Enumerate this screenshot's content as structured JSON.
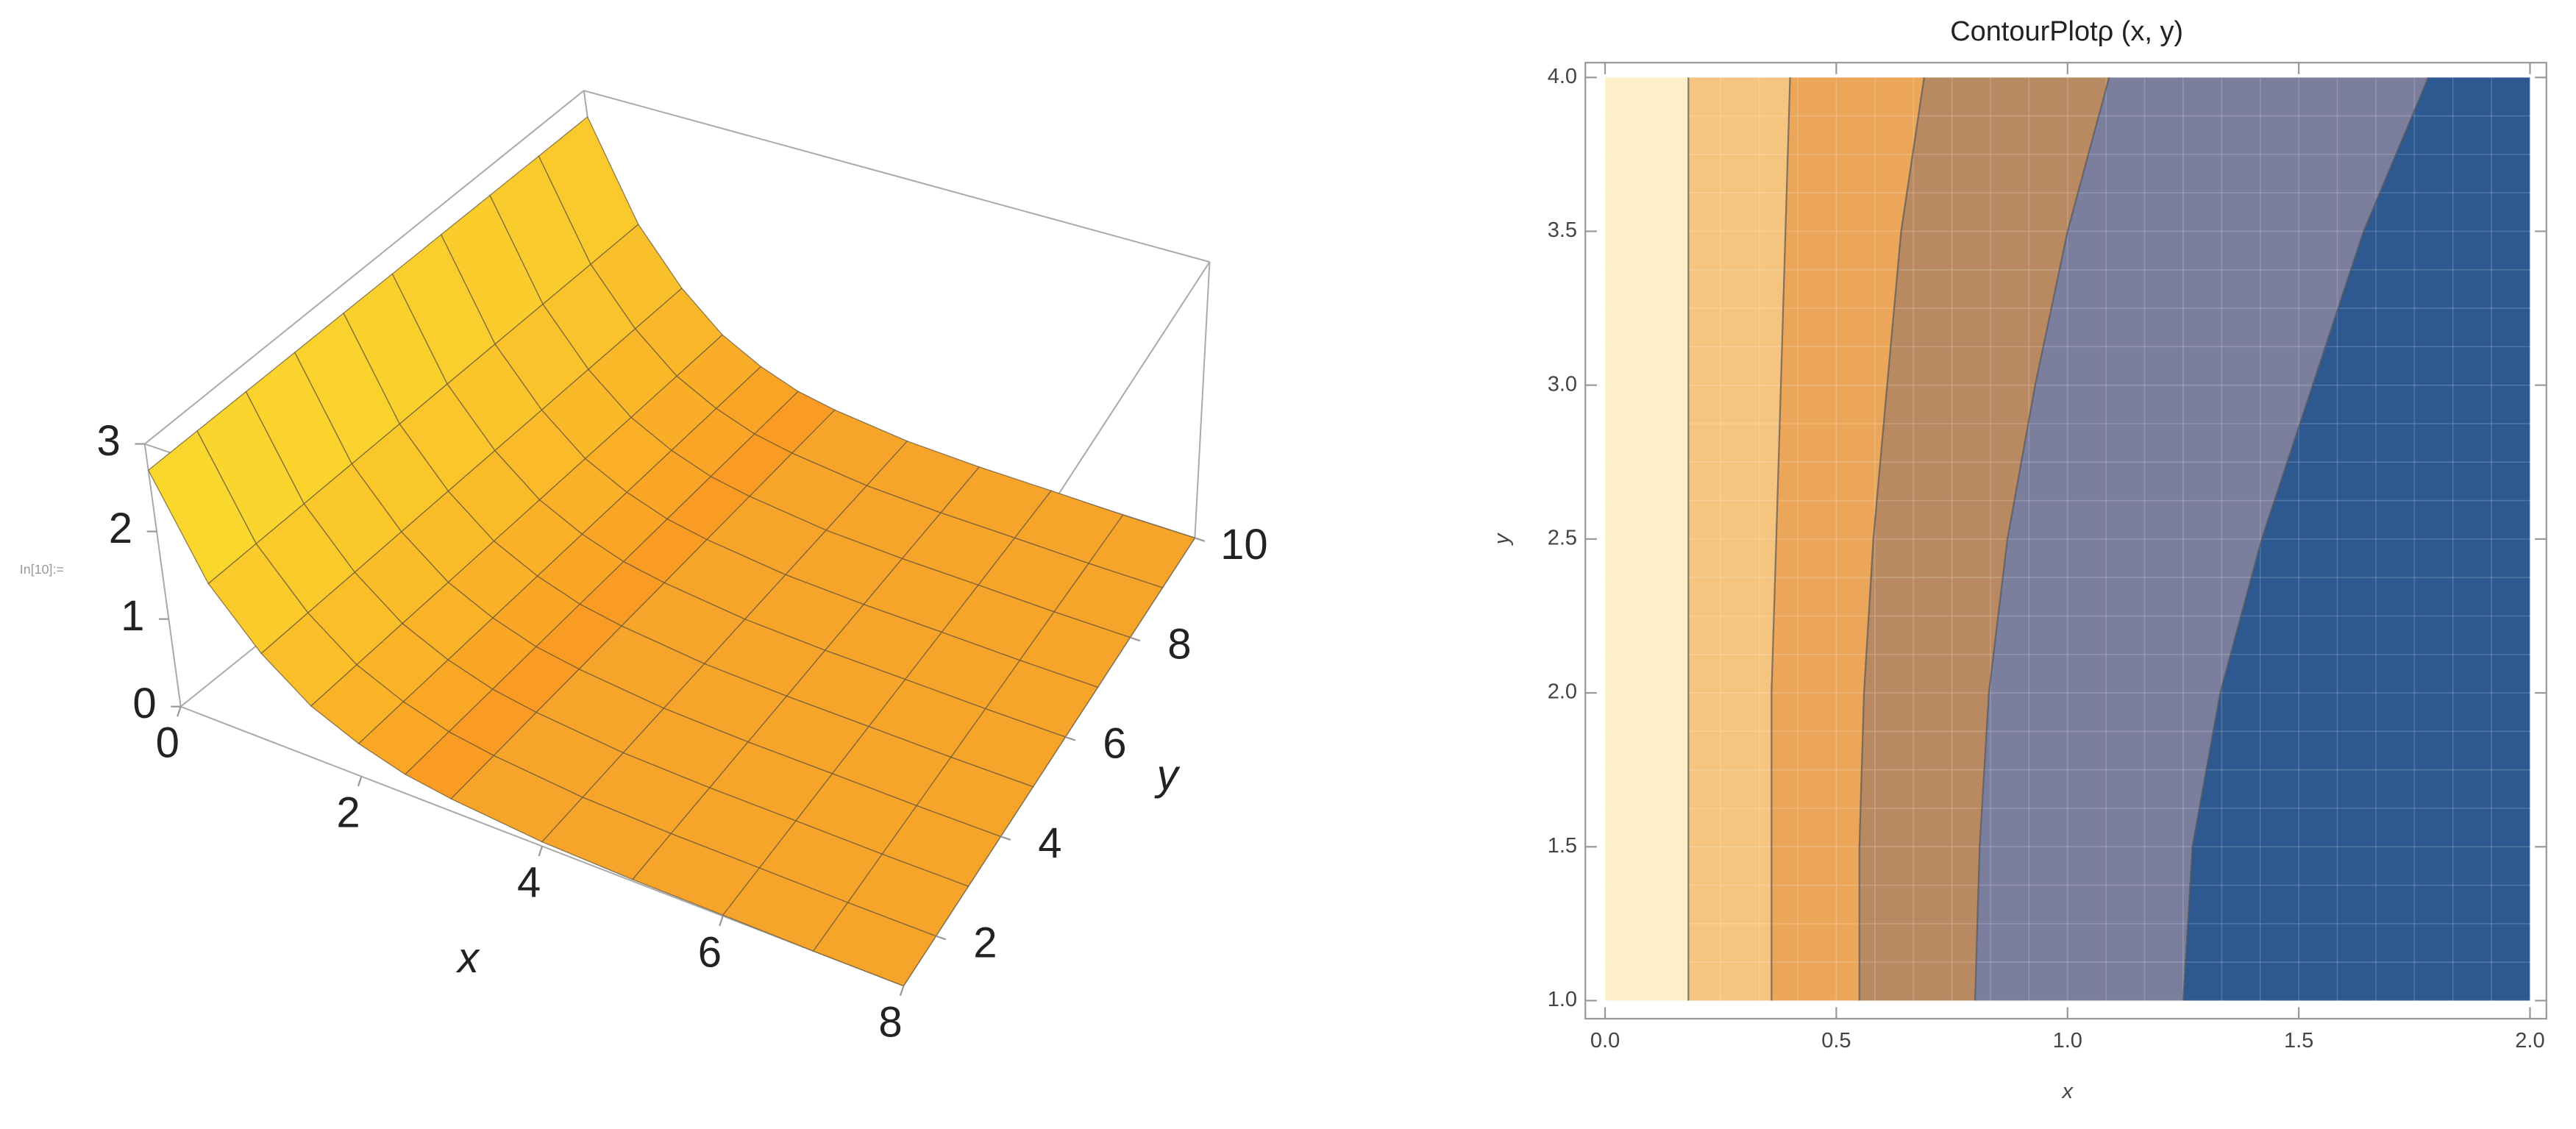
{
  "cell_label": "In[10]:=",
  "chart_data": [
    {
      "type": "surface3d",
      "x_label": "x",
      "y_label": "y",
      "x": [
        0,
        0.5,
        1,
        1.5,
        2,
        2.5,
        3,
        4,
        5,
        6,
        7,
        8
      ],
      "values": [
        2.7,
        1.6,
        1.0,
        0.6,
        0.37,
        0.22,
        0.14,
        0.05,
        0.02,
        0.01,
        0,
        0
      ],
      "color": "#f7a42b",
      "xlim": [
        0,
        8
      ],
      "ylim": [
        1,
        10
      ],
      "zlim": [
        0,
        3
      ],
      "xticks": [
        0,
        2,
        4,
        6,
        8
      ],
      "yticks": [
        2,
        4,
        6,
        8,
        10
      ],
      "zticks": [
        0,
        1,
        2,
        3
      ]
    },
    {
      "type": "contour",
      "title": "ContourPlotρ (x, y)",
      "x_label": "x",
      "y_label": "y",
      "xlim": [
        0,
        2
      ],
      "ylim": [
        1,
        4
      ],
      "xticks": [
        {
          "value": 0,
          "label": "0.0"
        },
        {
          "value": 0.5,
          "label": "0.5"
        },
        {
          "value": 1,
          "label": "1.0"
        },
        {
          "value": 1.5,
          "label": "1.5"
        },
        {
          "value": 2,
          "label": "2.0"
        }
      ],
      "yticks": [
        {
          "value": 1,
          "label": "1.0"
        },
        {
          "value": 1.5,
          "label": "1.5"
        },
        {
          "value": 2,
          "label": "2.0"
        },
        {
          "value": 2.5,
          "label": "2.5"
        },
        {
          "value": 3,
          "label": "3.0"
        },
        {
          "value": 3.5,
          "label": "3.5"
        },
        {
          "value": 4,
          "label": "4.0"
        }
      ],
      "boundary_y": [
        1.0,
        1.5,
        2.0,
        2.5,
        3.0,
        3.5,
        4.0
      ],
      "boundaries": [
        [
          0.18,
          0.18,
          0.18,
          0.18,
          0.18,
          0.18,
          0.18
        ],
        [
          0.36,
          0.36,
          0.36,
          0.37,
          0.38,
          0.39,
          0.4
        ],
        [
          0.55,
          0.55,
          0.56,
          0.58,
          0.61,
          0.64,
          0.69
        ],
        [
          0.8,
          0.81,
          0.83,
          0.87,
          0.93,
          1.0,
          1.09
        ],
        [
          1.25,
          1.27,
          1.33,
          1.42,
          1.53,
          1.64,
          1.78
        ]
      ],
      "colors": [
        "#fdf0c8",
        "#f5c580",
        "#eba659",
        "#b98a62",
        "#7b7e9d",
        "#2d5890"
      ]
    }
  ]
}
